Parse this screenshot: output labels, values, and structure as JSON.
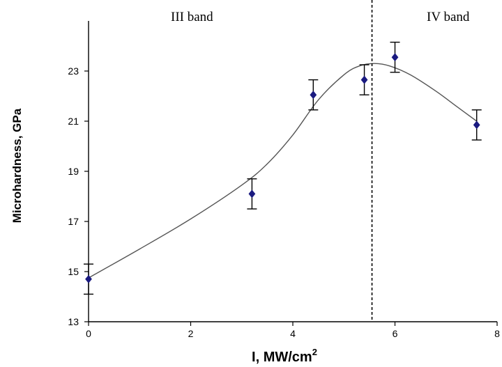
{
  "chart_data": {
    "type": "scatter",
    "title": "",
    "xlabel": "I, MW/cm",
    "xlabel_sup": "2",
    "ylabel": "Microhardness, GPa",
    "xlim": [
      0,
      8
    ],
    "ylim": [
      13,
      25
    ],
    "x_ticks": [
      "0",
      "2",
      "4",
      "6",
      "8"
    ],
    "y_ticks": [
      "13",
      "15",
      "17",
      "19",
      "21",
      "23"
    ],
    "grid": false,
    "legend": "none",
    "marker_color": "#1a1a80",
    "curve_color": "#555555",
    "points": [
      {
        "x": 0,
        "y": 14.7,
        "err": 0.6
      },
      {
        "x": 3.2,
        "y": 18.1,
        "err": 0.6
      },
      {
        "x": 4.4,
        "y": 22.05,
        "err": 0.6
      },
      {
        "x": 5.4,
        "y": 22.65,
        "err": 0.6
      },
      {
        "x": 6.0,
        "y": 23.55,
        "err": 0.6
      },
      {
        "x": 7.6,
        "y": 20.85,
        "err": 0.6
      }
    ],
    "fit_curve": [
      [
        0,
        14.75
      ],
      [
        1,
        15.9
      ],
      [
        2,
        17.1
      ],
      [
        3,
        18.45
      ],
      [
        3.5,
        19.3
      ],
      [
        4,
        20.45
      ],
      [
        4.5,
        21.85
      ],
      [
        5,
        22.85
      ],
      [
        5.3,
        23.2
      ],
      [
        5.6,
        23.3
      ],
      [
        5.9,
        23.2
      ],
      [
        6.3,
        22.85
      ],
      [
        6.8,
        22.2
      ],
      [
        7.2,
        21.6
      ],
      [
        7.6,
        21.0
      ]
    ],
    "divider_x": 5.55,
    "annotations": [
      "III band",
      "IV band"
    ]
  }
}
